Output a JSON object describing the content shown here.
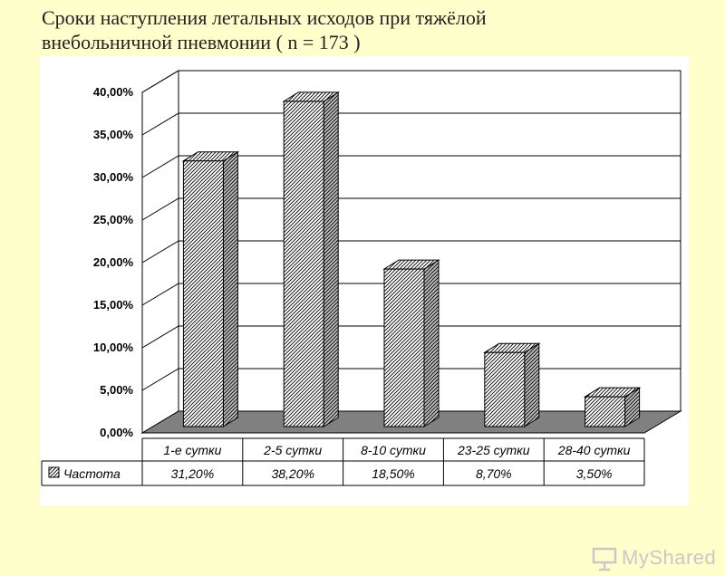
{
  "slide": {
    "title_line1": "Сроки наступления летальных исходов при тяжёлой",
    "title_line2": "внебольничной пневмонии  ( n = 173 )"
  },
  "chart_data": {
    "type": "bar",
    "categories": [
      "1-е сутки",
      "2-5 сутки",
      "8-10 сутки",
      "23-25 сутки",
      "28-40 сутки"
    ],
    "series": [
      {
        "name": "Частота",
        "values": [
          31.2,
          38.2,
          18.5,
          8.7,
          3.5
        ]
      }
    ],
    "value_labels": [
      "31,20%",
      "38,20%",
      "18,50%",
      "8,70%",
      "3,50%"
    ],
    "y_ticks": [
      "0,00%",
      "5,00%",
      "10,00%",
      "15,00%",
      "20,00%",
      "25,00%",
      "30,00%",
      "35,00%",
      "40,00%"
    ],
    "ylim": [
      0,
      40
    ],
    "grid": true,
    "three_d": true,
    "legend": "data-table-left",
    "colors": {
      "bar_fill": "#ffffff",
      "bar_pattern": "#000000",
      "floor": "#808080",
      "grid": "#000000"
    }
  },
  "watermark": {
    "text": "MyShared"
  }
}
